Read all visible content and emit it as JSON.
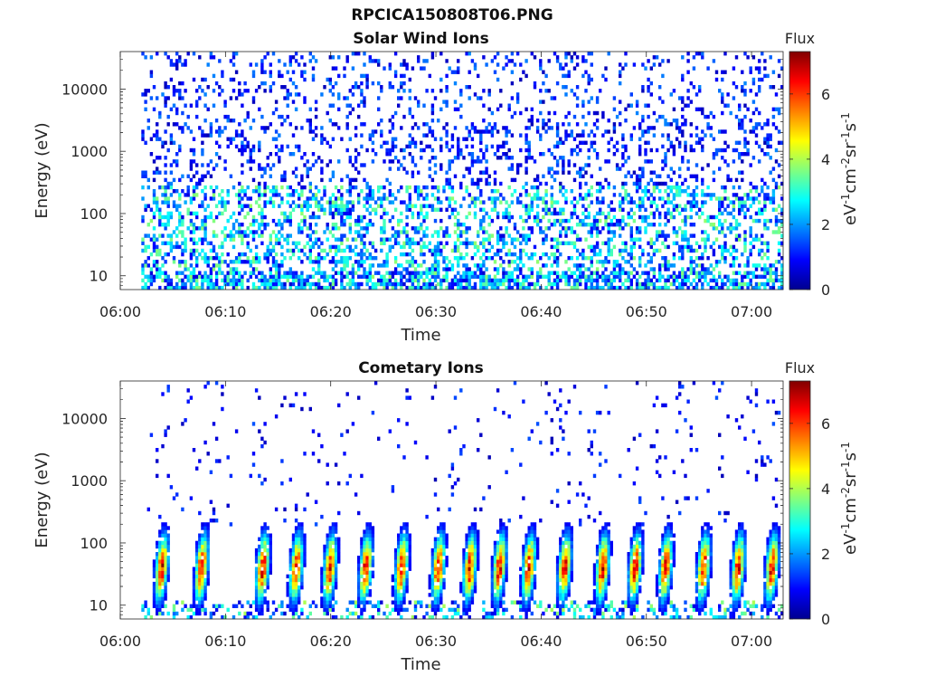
{
  "figure": {
    "title": "RPCICA150808T06.PNG"
  },
  "chart_data": [
    {
      "type": "heatmap",
      "title": "Solar Wind Ions",
      "xlabel": "Time",
      "ylabel": "Energy (eV)",
      "x_ticks": [
        "06:00",
        "06:10",
        "06:20",
        "06:30",
        "06:40",
        "06:50",
        "07:00"
      ],
      "y_ticks": [
        "10",
        "100",
        "1000",
        "10000"
      ],
      "y_scale": "log",
      "xlim": [
        "06:00",
        "07:03"
      ],
      "ylim_eV": [
        6,
        40000
      ],
      "colorbar": {
        "label": "Flux",
        "units": "eV-1cm-2sr-1s-1",
        "ticks": [
          "0",
          "2",
          "4",
          "6"
        ],
        "range": [
          0,
          7.3
        ],
        "colormap": "jet"
      },
      "data_start": "06:02",
      "data_end": "07:03",
      "description_of_values": "sparse low flux (0-2) across 10 eV-30 keV, moderate flux (2-4) below ~300 eV"
    },
    {
      "type": "heatmap",
      "title": "Cometary Ions",
      "xlabel": "Time",
      "ylabel": "Energy (eV)",
      "x_ticks": [
        "06:00",
        "06:10",
        "06:20",
        "06:30",
        "06:40",
        "06:50",
        "07:00"
      ],
      "y_ticks": [
        "10",
        "100",
        "1000",
        "10000"
      ],
      "y_scale": "log",
      "xlim": [
        "06:00",
        "07:03"
      ],
      "ylim_eV": [
        6,
        40000
      ],
      "colorbar": {
        "label": "Flux",
        "units": "eV-1cm-2sr-1s-1",
        "ticks": [
          "0",
          "2",
          "4",
          "6"
        ],
        "range": [
          0,
          7.3
        ],
        "colormap": "jet"
      },
      "data_start": "06:02",
      "data_end": "07:03",
      "burst_peak_times": [
        "06:03.8",
        "06:07.6",
        "06:13.4",
        "06:16.6",
        "06:19.8",
        "06:23.2",
        "06:26.6",
        "06:30.1",
        "06:33.1",
        "06:35.9",
        "06:38.7",
        "06:42.1",
        "06:45.7",
        "06:48.8",
        "06:51.7",
        "06:55.3",
        "06:58.6",
        "07:01.8"
      ],
      "burst_peak_energy_eV": 40,
      "burst_peak_flux": 6.8
    }
  ]
}
